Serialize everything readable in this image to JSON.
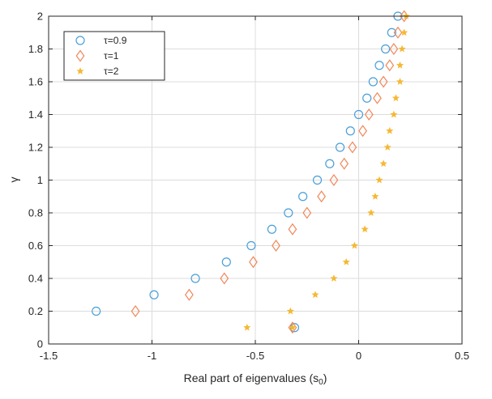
{
  "chart_data": {
    "type": "scatter",
    "title": "",
    "xlabel": "Real part of eigenvalues (s",
    "xlabel_sub": "0",
    "xlabel_suffix": ")",
    "ylabel": "γ",
    "xlim": [
      -1.5,
      0.5
    ],
    "ylim": [
      0,
      2
    ],
    "xticks": [
      "-1.5",
      "-1",
      "-0.5",
      "0",
      "0.5"
    ],
    "yticks": [
      "0",
      "0.2",
      "0.4",
      "0.6",
      "0.8",
      "1",
      "1.2",
      "1.4",
      "1.6",
      "1.8",
      "2"
    ],
    "grid": true,
    "legend_position": "top-left",
    "series": [
      {
        "name": "τ=0.9",
        "marker": "circle",
        "color": "#4a9fd8",
        "points": [
          [
            -1.27,
            0.2
          ],
          [
            -0.99,
            0.3
          ],
          [
            -0.79,
            0.4
          ],
          [
            -0.64,
            0.5
          ],
          [
            -0.52,
            0.6
          ],
          [
            -0.42,
            0.7
          ],
          [
            -0.34,
            0.8
          ],
          [
            -0.27,
            0.9
          ],
          [
            -0.2,
            1.0
          ],
          [
            -0.14,
            1.1
          ],
          [
            -0.09,
            1.2
          ],
          [
            -0.04,
            1.3
          ],
          [
            0.0,
            1.4
          ],
          [
            0.04,
            1.5
          ],
          [
            0.07,
            1.6
          ],
          [
            0.1,
            1.7
          ],
          [
            0.13,
            1.8
          ],
          [
            0.16,
            1.9
          ],
          [
            0.19,
            2.0
          ],
          [
            -0.31,
            0.1
          ]
        ]
      },
      {
        "name": "τ=1",
        "marker": "diamond",
        "color": "#f0885a",
        "points": [
          [
            -1.08,
            0.2
          ],
          [
            -0.82,
            0.3
          ],
          [
            -0.65,
            0.4
          ],
          [
            -0.51,
            0.5
          ],
          [
            -0.4,
            0.6
          ],
          [
            -0.32,
            0.7
          ],
          [
            -0.25,
            0.8
          ],
          [
            -0.18,
            0.9
          ],
          [
            -0.12,
            1.0
          ],
          [
            -0.07,
            1.1
          ],
          [
            -0.03,
            1.2
          ],
          [
            0.02,
            1.3
          ],
          [
            0.05,
            1.4
          ],
          [
            0.09,
            1.5
          ],
          [
            0.12,
            1.6
          ],
          [
            0.15,
            1.7
          ],
          [
            0.17,
            1.8
          ],
          [
            0.19,
            1.9
          ],
          [
            0.22,
            2.0
          ],
          [
            -0.32,
            0.1
          ]
        ]
      },
      {
        "name": "τ=2",
        "marker": "star",
        "color": "#f5b833",
        "points": [
          [
            -0.54,
            0.1
          ],
          [
            -0.33,
            0.2
          ],
          [
            -0.21,
            0.3
          ],
          [
            -0.12,
            0.4
          ],
          [
            -0.06,
            0.5
          ],
          [
            -0.02,
            0.6
          ],
          [
            0.03,
            0.7
          ],
          [
            0.06,
            0.8
          ],
          [
            0.08,
            0.9
          ],
          [
            0.1,
            1.0
          ],
          [
            0.12,
            1.1
          ],
          [
            0.14,
            1.2
          ],
          [
            0.15,
            1.3
          ],
          [
            0.17,
            1.4
          ],
          [
            0.18,
            1.5
          ],
          [
            0.2,
            1.6
          ],
          [
            0.2,
            1.7
          ],
          [
            0.21,
            1.8
          ],
          [
            0.22,
            1.9
          ],
          [
            0.23,
            2.0
          ],
          [
            -0.32,
            0.1
          ]
        ]
      }
    ]
  }
}
